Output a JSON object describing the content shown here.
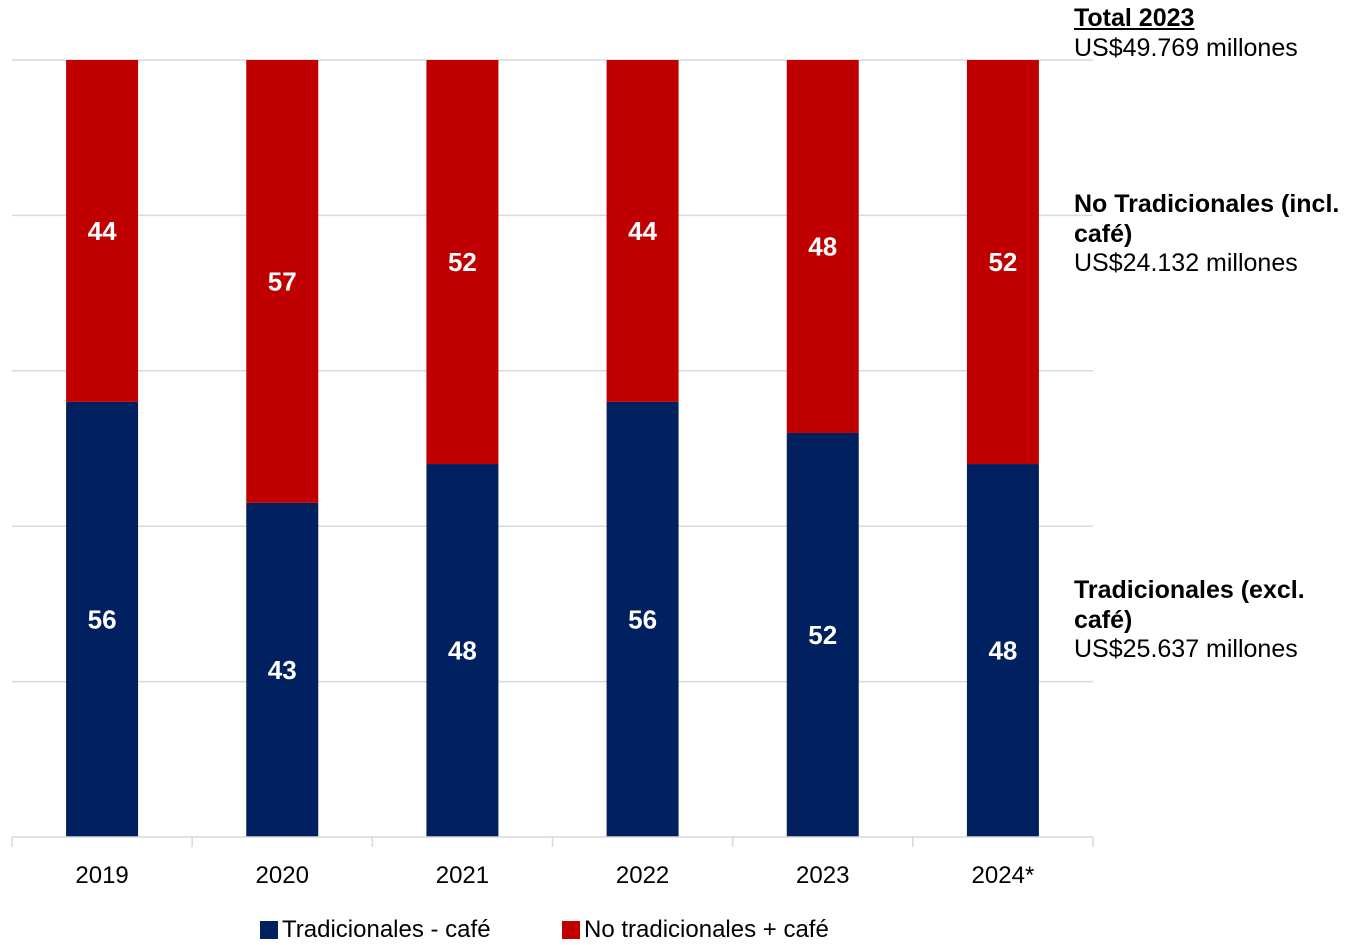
{
  "chart_data": {
    "type": "bar",
    "stacked": true,
    "normalized_percent": true,
    "categories": [
      "2019",
      "2020",
      "2021",
      "2022",
      "2023",
      "2024*"
    ],
    "series": [
      {
        "name": "Tradicionales - café",
        "color": "#002060",
        "values": [
          56,
          43,
          48,
          56,
          52,
          48
        ]
      },
      {
        "name": "No tradicionales + café",
        "color": "#C00000",
        "values": [
          44,
          57,
          52,
          44,
          48,
          52
        ]
      }
    ],
    "ylim": [
      0,
      100
    ],
    "grid": true,
    "legend_position": "bottom"
  },
  "annotations": {
    "total": {
      "title": "Total 2023",
      "value": "US$49.769 millones"
    },
    "no_tradicionales": {
      "title": "No Tradicionales (incl. café)",
      "value": "US$24.132 millones"
    },
    "tradicionales": {
      "title": "Tradicionales (excl. café)",
      "value": "US$25.637 millones"
    }
  },
  "legend": {
    "items": [
      {
        "label": "Tradicionales - café",
        "color": "#002060"
      },
      {
        "label": "No tradicionales + café",
        "color": "#C00000"
      }
    ]
  }
}
